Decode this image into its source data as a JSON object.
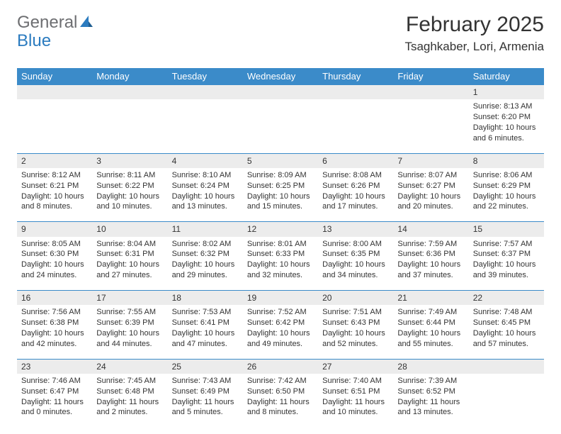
{
  "brand": {
    "part1": "General",
    "part2": "Blue"
  },
  "title": {
    "month_year": "February 2025",
    "location": "Tsaghkaber, Lori, Armenia"
  },
  "colors": {
    "header_bg": "#3b8bc9",
    "header_text": "#ffffff",
    "daynum_bg": "#ececec",
    "border": "#3b8bc9",
    "text": "#333333",
    "logo_gray": "#6d6e71",
    "logo_blue": "#2b7bbf"
  },
  "day_headers": [
    "Sunday",
    "Monday",
    "Tuesday",
    "Wednesday",
    "Thursday",
    "Friday",
    "Saturday"
  ],
  "weeks": [
    {
      "nums": [
        "",
        "",
        "",
        "",
        "",
        "",
        "1"
      ],
      "cells": [
        "",
        "",
        "",
        "",
        "",
        "",
        "Sunrise: 8:13 AM\nSunset: 6:20 PM\nDaylight: 10 hours and 6 minutes."
      ]
    },
    {
      "nums": [
        "2",
        "3",
        "4",
        "5",
        "6",
        "7",
        "8"
      ],
      "cells": [
        "Sunrise: 8:12 AM\nSunset: 6:21 PM\nDaylight: 10 hours and 8 minutes.",
        "Sunrise: 8:11 AM\nSunset: 6:22 PM\nDaylight: 10 hours and 10 minutes.",
        "Sunrise: 8:10 AM\nSunset: 6:24 PM\nDaylight: 10 hours and 13 minutes.",
        "Sunrise: 8:09 AM\nSunset: 6:25 PM\nDaylight: 10 hours and 15 minutes.",
        "Sunrise: 8:08 AM\nSunset: 6:26 PM\nDaylight: 10 hours and 17 minutes.",
        "Sunrise: 8:07 AM\nSunset: 6:27 PM\nDaylight: 10 hours and 20 minutes.",
        "Sunrise: 8:06 AM\nSunset: 6:29 PM\nDaylight: 10 hours and 22 minutes."
      ]
    },
    {
      "nums": [
        "9",
        "10",
        "11",
        "12",
        "13",
        "14",
        "15"
      ],
      "cells": [
        "Sunrise: 8:05 AM\nSunset: 6:30 PM\nDaylight: 10 hours and 24 minutes.",
        "Sunrise: 8:04 AM\nSunset: 6:31 PM\nDaylight: 10 hours and 27 minutes.",
        "Sunrise: 8:02 AM\nSunset: 6:32 PM\nDaylight: 10 hours and 29 minutes.",
        "Sunrise: 8:01 AM\nSunset: 6:33 PM\nDaylight: 10 hours and 32 minutes.",
        "Sunrise: 8:00 AM\nSunset: 6:35 PM\nDaylight: 10 hours and 34 minutes.",
        "Sunrise: 7:59 AM\nSunset: 6:36 PM\nDaylight: 10 hours and 37 minutes.",
        "Sunrise: 7:57 AM\nSunset: 6:37 PM\nDaylight: 10 hours and 39 minutes."
      ]
    },
    {
      "nums": [
        "16",
        "17",
        "18",
        "19",
        "20",
        "21",
        "22"
      ],
      "cells": [
        "Sunrise: 7:56 AM\nSunset: 6:38 PM\nDaylight: 10 hours and 42 minutes.",
        "Sunrise: 7:55 AM\nSunset: 6:39 PM\nDaylight: 10 hours and 44 minutes.",
        "Sunrise: 7:53 AM\nSunset: 6:41 PM\nDaylight: 10 hours and 47 minutes.",
        "Sunrise: 7:52 AM\nSunset: 6:42 PM\nDaylight: 10 hours and 49 minutes.",
        "Sunrise: 7:51 AM\nSunset: 6:43 PM\nDaylight: 10 hours and 52 minutes.",
        "Sunrise: 7:49 AM\nSunset: 6:44 PM\nDaylight: 10 hours and 55 minutes.",
        "Sunrise: 7:48 AM\nSunset: 6:45 PM\nDaylight: 10 hours and 57 minutes."
      ]
    },
    {
      "nums": [
        "23",
        "24",
        "25",
        "26",
        "27",
        "28",
        ""
      ],
      "cells": [
        "Sunrise: 7:46 AM\nSunset: 6:47 PM\nDaylight: 11 hours and 0 minutes.",
        "Sunrise: 7:45 AM\nSunset: 6:48 PM\nDaylight: 11 hours and 2 minutes.",
        "Sunrise: 7:43 AM\nSunset: 6:49 PM\nDaylight: 11 hours and 5 minutes.",
        "Sunrise: 7:42 AM\nSunset: 6:50 PM\nDaylight: 11 hours and 8 minutes.",
        "Sunrise: 7:40 AM\nSunset: 6:51 PM\nDaylight: 11 hours and 10 minutes.",
        "Sunrise: 7:39 AM\nSunset: 6:52 PM\nDaylight: 11 hours and 13 minutes.",
        ""
      ]
    }
  ]
}
